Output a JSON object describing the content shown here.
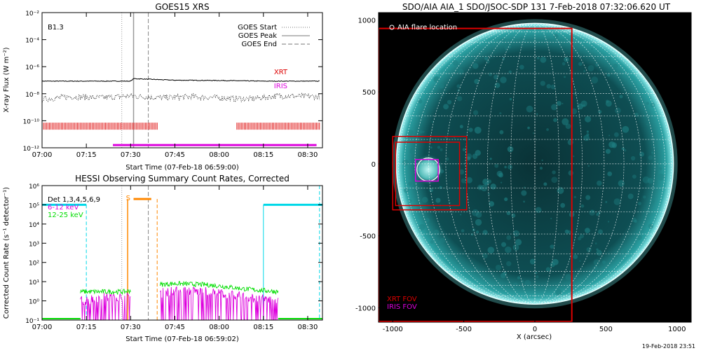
{
  "footer_date": "19-Feb-2018 23:51",
  "colors": {
    "black": "#000000",
    "red": "#dd0000",
    "magenta": "#dd00dd",
    "green": "#00dd00",
    "cyan": "#00d8e8",
    "orange": "#ff8800",
    "gray": "#888888",
    "sun_dark": "#071a1c",
    "sun_mid": "#0f5a60",
    "sun_limb": "#7ef0f0"
  },
  "chart_data": [
    {
      "type": "line",
      "title": "GOES15 XRS",
      "xlabel": "Start Time (07-Feb-18 06:59:00)",
      "ylabel": "X-ray Flux (W m⁻²)",
      "y_scale": "log",
      "xlim": [
        "07:00",
        "08:35"
      ],
      "ylim": [
        1e-12,
        0.01
      ],
      "x_ticks": [
        "07:00",
        "07:15",
        "07:30",
        "07:45",
        "08:00",
        "08:15",
        "08:30"
      ],
      "y_ticks": [
        "10⁻¹²",
        "10⁻¹⁰",
        "10⁻⁸",
        "10⁻⁶",
        "10⁻⁴",
        "10⁻²"
      ],
      "class_label": "B1.3",
      "legend": {
        "placement": "top-right",
        "entries": [
          {
            "label": "GOES Start",
            "style": "dotted"
          },
          {
            "label": "GOES Peak",
            "style": "solid"
          },
          {
            "label": "GOES End",
            "style": "dashed"
          }
        ]
      },
      "markers": {
        "goes_start": "07:27",
        "goes_peak": "07:31",
        "goes_end": "07:36"
      },
      "series": [
        {
          "name": "long",
          "color": "#000000",
          "x": [
            "07:00",
            "07:30",
            "07:31",
            "07:45",
            "08:00",
            "08:15",
            "08:34"
          ],
          "values": [
            8.5e-08,
            8.5e-08,
            1.3e-07,
            1e-07,
            9.5e-08,
            8.5e-08,
            8.5e-08
          ]
        },
        {
          "name": "short",
          "color": "#000000",
          "x": [
            "07:00",
            "07:10",
            "07:20",
            "07:30",
            "07:40",
            "07:50",
            "08:00",
            "08:10",
            "08:20",
            "08:34"
          ],
          "values": [
            4e-09,
            6e-09,
            5e-09,
            7e-09,
            5e-09,
            6e-09,
            5e-09,
            4e-09,
            7e-09,
            6e-09
          ]
        }
      ],
      "coverage": [
        {
          "name": "XRT",
          "color": "#dd0000",
          "intervals": [
            [
              "07:00",
              "07:39"
            ],
            [
              "08:06",
              "08:34"
            ]
          ]
        },
        {
          "name": "IRIS",
          "color": "#dd00dd",
          "intervals": [
            [
              "07:24",
              "08:33"
            ]
          ]
        }
      ]
    },
    {
      "type": "line",
      "title": "HESSI Observing Summary Count Rates, Corrected",
      "xlabel": "Start Time (07-Feb-18 06:59:02)",
      "ylabel": "Corrected Count Rate (s⁻¹ detector⁻¹)",
      "y_scale": "log",
      "xlim": [
        "07:00",
        "08:35"
      ],
      "ylim": [
        0.1,
        1000000.0
      ],
      "x_ticks": [
        "07:00",
        "07:15",
        "07:30",
        "07:45",
        "08:00",
        "08:15",
        "08:30"
      ],
      "y_ticks": [
        "10⁻¹",
        "10⁰",
        "10¹",
        "10²",
        "10³",
        "10⁴",
        "10⁵",
        "10⁶"
      ],
      "legend": {
        "placement": "top-left",
        "entries": [
          {
            "label": "Det 1,3,4,5,6,9",
            "color": "#000000"
          },
          {
            "label": "6-12 keV",
            "color": "#dd00dd"
          },
          {
            "label": "12-25 keV",
            "color": "#00dd00"
          }
        ]
      },
      "saa_label": "S",
      "saa_interval": [
        "07:31",
        "07:37"
      ],
      "saa_start_marker": "07:29",
      "saa_end_marker": "07:39",
      "night_intervals": [
        [
          "07:00",
          "07:15"
        ],
        [
          "08:15",
          "08:35"
        ]
      ],
      "night_level": 100000.0,
      "series": [
        {
          "name": "6-12 keV",
          "color": "#dd00dd",
          "x": [
            "07:13",
            "07:20",
            "07:28",
            "07:40",
            "07:45",
            "07:55",
            "08:00",
            "08:10",
            "08:20"
          ],
          "values": [
            1,
            1.5,
            1.5,
            2.5,
            3.5,
            3,
            2.5,
            1.5,
            1
          ]
        },
        {
          "name": "12-25 keV",
          "color": "#00dd00",
          "x": [
            "07:13",
            "07:20",
            "07:28",
            "07:40",
            "07:45",
            "07:55",
            "08:00",
            "08:10",
            "08:20"
          ],
          "values": [
            3,
            3,
            3,
            7,
            8,
            7,
            6,
            4,
            3
          ]
        }
      ]
    },
    {
      "type": "scatter",
      "title": "SDO/AIA AIA_1 SDO/JSOC-SDP 131  7-Feb-2018 07:32:06.620 UT",
      "xlabel": "X (arcsec)",
      "ylabel": "",
      "xlim": [
        -1100,
        1100
      ],
      "ylim": [
        -1100,
        1050
      ],
      "x_ticks": [
        "-1000",
        "-500",
        "0",
        "500",
        "1000"
      ],
      "y_ticks": [
        "-1000",
        "-500",
        "0",
        "500",
        "1000"
      ],
      "legend_top": "AIA flare location",
      "legend_bottom": [
        {
          "label": "XRT FOV",
          "color": "#dd0000"
        },
        {
          "label": "IRIS FOV",
          "color": "#dd00dd"
        }
      ],
      "solar_radius_arcsec": 975,
      "flare_location": {
        "x": -750,
        "y": -40,
        "r": 80
      },
      "fov_boxes": [
        {
          "name": "XRT FOV",
          "color": "#dd0000",
          "x": [
            -1100,
            260
          ],
          "y": [
            -1095,
            940
          ]
        },
        {
          "name": "XRT FOV",
          "color": "#dd0000",
          "x": [
            -1000,
            -480
          ],
          "y": [
            -320,
            190
          ]
        },
        {
          "name": "XRT FOV",
          "color": "#dd0000",
          "x": [
            -980,
            -530
          ],
          "y": [
            -290,
            150
          ]
        },
        {
          "name": "IRIS FOV",
          "color": "#dd00dd",
          "x": [
            -840,
            -680
          ],
          "y": [
            -120,
            30
          ]
        }
      ]
    }
  ]
}
